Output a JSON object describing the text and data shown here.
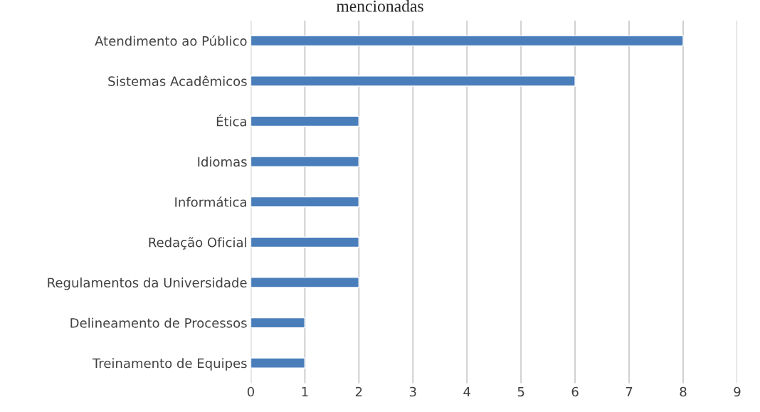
{
  "chart_data": {
    "type": "bar",
    "orientation": "horizontal",
    "title": "mencionadas",
    "categories": [
      "Atendimento ao Público",
      "Sistemas Acadêmicos",
      "Ética",
      "Idiomas",
      "Informática",
      "Redação Oficial",
      "Regulamentos da Universidade",
      "Delineamento de Processos",
      "Treinamento de Equipes"
    ],
    "values": [
      8,
      6,
      2,
      2,
      2,
      2,
      2,
      1,
      1
    ],
    "color": "#4a7ebb",
    "xlim": [
      0,
      9
    ],
    "xticks": [
      0,
      1,
      2,
      3,
      4,
      5,
      6,
      7,
      8,
      9
    ],
    "grid": "x",
    "legend": false
  }
}
